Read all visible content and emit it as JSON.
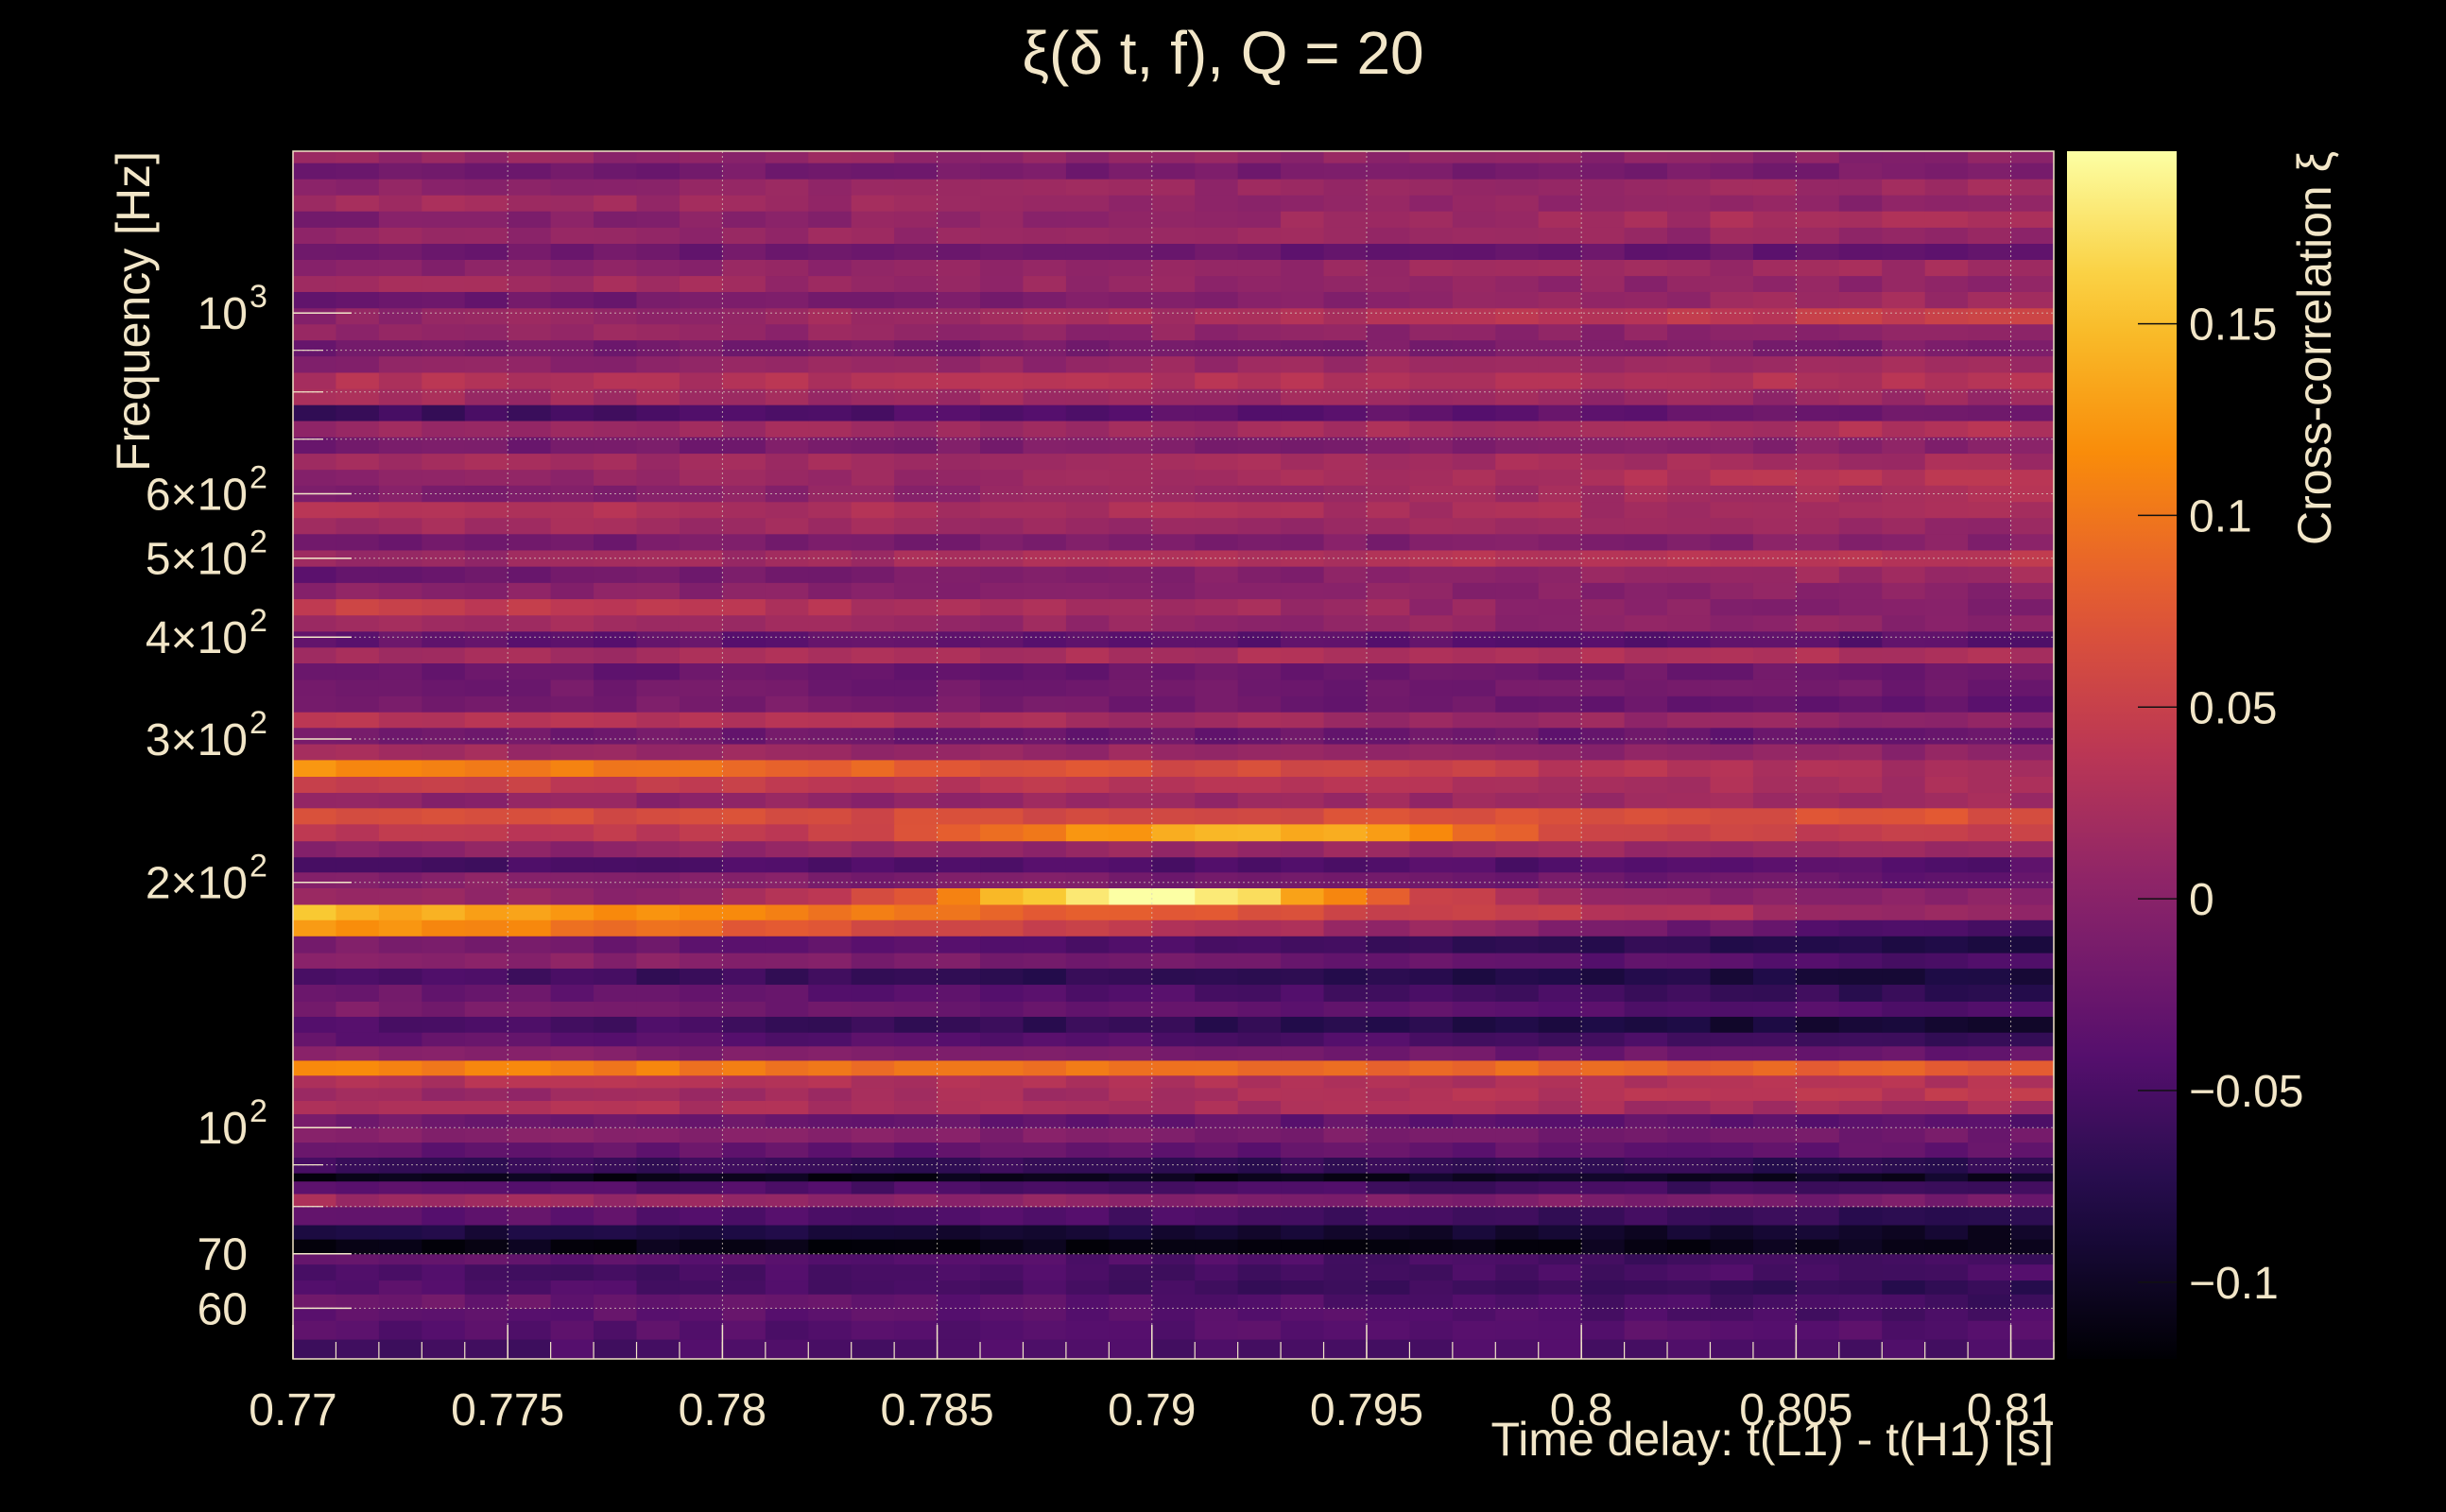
{
  "chart_data": {
    "type": "heatmap",
    "title": "ξ(δ t, f), Q = 20",
    "xlabel": "Time delay: t(L1) - t(H1) [s]",
    "ylabel": "Frequency [Hz]",
    "colorbar_label": "Cross-correlation ξ",
    "x_scale": "linear",
    "y_scale": "log",
    "xlim": [
      0.77,
      0.811
    ],
    "ylim": [
      52,
      1580
    ],
    "clim": [
      -0.12,
      0.195
    ],
    "grid": true,
    "colormap": "inferno",
    "x_ticks": [
      {
        "value": 0.77,
        "label": "0.77"
      },
      {
        "value": 0.775,
        "label": "0.775"
      },
      {
        "value": 0.78,
        "label": "0.78"
      },
      {
        "value": 0.785,
        "label": "0.785"
      },
      {
        "value": 0.79,
        "label": "0.79"
      },
      {
        "value": 0.795,
        "label": "0.795"
      },
      {
        "value": 0.8,
        "label": "0.8"
      },
      {
        "value": 0.805,
        "label": "0.805"
      },
      {
        "value": 0.81,
        "label": "0.81"
      }
    ],
    "y_ticks": [
      {
        "value": 60,
        "label": "60",
        "exp": ""
      },
      {
        "value": 70,
        "label": "70",
        "exp": ""
      },
      {
        "value": 100,
        "label": "10",
        "exp": "2"
      },
      {
        "value": 200,
        "label": "2×10",
        "exp": "2"
      },
      {
        "value": 300,
        "label": "3×10",
        "exp": "2"
      },
      {
        "value": 400,
        "label": "4×10",
        "exp": "2"
      },
      {
        "value": 500,
        "label": "5×10",
        "exp": "2"
      },
      {
        "value": 600,
        "label": "6×10",
        "exp": "2"
      },
      {
        "value": 1000,
        "label": "10",
        "exp": "3"
      }
    ],
    "y_minor_ticks": [
      80,
      90,
      700,
      800,
      900
    ],
    "colorbar_ticks": [
      {
        "value": 0.15,
        "label": "0.15"
      },
      {
        "value": 0.1,
        "label": "0.1"
      },
      {
        "value": 0.05,
        "label": "0.05"
      },
      {
        "value": 0,
        "label": "0"
      },
      {
        "value": -0.05,
        "label": "−0.05"
      },
      {
        "value": -0.1,
        "label": "−0.1"
      }
    ],
    "rows": [
      {
        "f_low": 52,
        "f_high": 55,
        "start": -0.05,
        "end": -0.05
      },
      {
        "f_low": 55,
        "f_high": 58,
        "start": -0.04,
        "end": -0.04
      },
      {
        "f_low": 58,
        "f_high": 60,
        "start": -0.03,
        "end": -0.05
      },
      {
        "f_low": 60,
        "f_high": 62.5,
        "start": -0.02,
        "end": -0.06
      },
      {
        "f_low": 62.5,
        "f_high": 65,
        "start": -0.04,
        "end": -0.07
      },
      {
        "f_low": 65,
        "f_high": 68,
        "start": -0.05,
        "end": -0.05
      },
      {
        "f_low": 68,
        "f_high": 70,
        "start": -0.03,
        "end": -0.06
      },
      {
        "f_low": 70,
        "f_high": 73,
        "start": -0.11,
        "end": -0.11
      },
      {
        "f_low": 73,
        "f_high": 76,
        "start": -0.08,
        "end": -0.1
      },
      {
        "f_low": 76,
        "f_high": 80,
        "start": -0.03,
        "end": -0.07
      },
      {
        "f_low": 80,
        "f_high": 83,
        "start": 0.02,
        "end": -0.02
      },
      {
        "f_low": 83,
        "f_high": 86,
        "start": -0.04,
        "end": -0.06
      },
      {
        "f_low": 86,
        "f_high": 88,
        "start": -0.11,
        "end": -0.1
      },
      {
        "f_low": 88,
        "f_high": 92,
        "start": -0.06,
        "end": -0.07
      },
      {
        "f_low": 92,
        "f_high": 96,
        "start": -0.03,
        "end": -0.03
      },
      {
        "f_low": 96,
        "f_high": 100,
        "start": 0.0,
        "end": -0.02
      },
      {
        "f_low": 100,
        "f_high": 104,
        "start": -0.02,
        "end": -0.04
      },
      {
        "f_low": 104,
        "f_high": 108,
        "start": 0.03,
        "end": 0.02
      },
      {
        "f_low": 108,
        "f_high": 112,
        "start": 0.01,
        "end": 0.04
      },
      {
        "f_low": 112,
        "f_high": 116,
        "start": 0.03,
        "end": 0.03
      },
      {
        "f_low": 116,
        "f_high": 121,
        "start": 0.11,
        "end": 0.08
      },
      {
        "f_low": 121,
        "f_high": 126,
        "start": 0.0,
        "end": -0.03
      },
      {
        "f_low": 126,
        "f_high": 131,
        "start": -0.03,
        "end": -0.06
      },
      {
        "f_low": 131,
        "f_high": 137,
        "start": -0.04,
        "end": -0.1
      },
      {
        "f_low": 137,
        "f_high": 143,
        "start": -0.01,
        "end": -0.05
      },
      {
        "f_low": 143,
        "f_high": 150,
        "start": -0.02,
        "end": -0.07
      },
      {
        "f_low": 150,
        "f_high": 157,
        "start": -0.05,
        "end": -0.09
      },
      {
        "f_low": 157,
        "f_high": 164,
        "start": 0.01,
        "end": -0.05
      },
      {
        "f_low": 164,
        "f_high": 172,
        "start": -0.01,
        "end": -0.09
      },
      {
        "f_low": 172,
        "f_high": 180,
        "start": 0.13,
        "end": -0.06
      },
      {
        "f_low": 180,
        "f_high": 188,
        "start": 0.15,
        "end": 0.0
      },
      {
        "f_low": 188,
        "f_high": 197,
        "start": 0.01,
        "end": -0.02
      },
      {
        "f_low": 197,
        "f_high": 206,
        "start": 0.0,
        "end": -0.03
      },
      {
        "f_low": 206,
        "f_high": 215,
        "start": -0.05,
        "end": -0.04
      },
      {
        "f_low": 215,
        "f_high": 225,
        "start": 0.0,
        "end": 0.02
      },
      {
        "f_low": 225,
        "f_high": 236,
        "start": 0.04,
        "end": 0.05
      },
      {
        "f_low": 236,
        "f_high": 247,
        "start": 0.06,
        "end": 0.07
      },
      {
        "f_low": 247,
        "f_high": 258,
        "start": 0.0,
        "end": 0.02
      },
      {
        "f_low": 258,
        "f_high": 270,
        "start": 0.05,
        "end": 0.02
      },
      {
        "f_low": 270,
        "f_high": 283,
        "start": 0.12,
        "end": 0.01
      },
      {
        "f_low": 283,
        "f_high": 296,
        "start": 0.02,
        "end": 0.0
      },
      {
        "f_low": 296,
        "f_high": 310,
        "start": -0.02,
        "end": -0.03
      },
      {
        "f_low": 310,
        "f_high": 324,
        "start": 0.04,
        "end": 0.0
      },
      {
        "f_low": 324,
        "f_high": 339,
        "start": -0.01,
        "end": -0.03
      },
      {
        "f_low": 339,
        "f_high": 355,
        "start": -0.02,
        "end": -0.02
      },
      {
        "f_low": 355,
        "f_high": 372,
        "start": -0.03,
        "end": -0.02
      },
      {
        "f_low": 372,
        "f_high": 389,
        "start": 0.02,
        "end": 0.03
      },
      {
        "f_low": 389,
        "f_high": 407,
        "start": -0.03,
        "end": -0.04
      },
      {
        "f_low": 407,
        "f_high": 426,
        "start": 0.02,
        "end": 0.0
      },
      {
        "f_low": 426,
        "f_high": 446,
        "start": 0.05,
        "end": -0.01
      },
      {
        "f_low": 446,
        "f_high": 467,
        "start": 0.0,
        "end": 0.0
      },
      {
        "f_low": 467,
        "f_high": 489,
        "start": -0.03,
        "end": 0.02
      },
      {
        "f_low": 489,
        "f_high": 512,
        "start": 0.01,
        "end": 0.04
      },
      {
        "f_low": 512,
        "f_high": 536,
        "start": -0.02,
        "end": 0.0
      },
      {
        "f_low": 536,
        "f_high": 561,
        "start": 0.02,
        "end": 0.01
      },
      {
        "f_low": 561,
        "f_high": 587,
        "start": 0.03,
        "end": 0.02
      },
      {
        "f_low": 587,
        "f_high": 615,
        "start": -0.01,
        "end": 0.03
      },
      {
        "f_low": 615,
        "f_high": 643,
        "start": 0.0,
        "end": 0.04
      },
      {
        "f_low": 643,
        "f_high": 673,
        "start": 0.02,
        "end": 0.02
      },
      {
        "f_low": 673,
        "f_high": 705,
        "start": -0.02,
        "end": 0.0
      },
      {
        "f_low": 705,
        "f_high": 738,
        "start": 0.01,
        "end": 0.03
      },
      {
        "f_low": 738,
        "f_high": 772,
        "start": -0.06,
        "end": -0.02
      },
      {
        "f_low": 772,
        "f_high": 808,
        "start": 0.02,
        "end": 0.01
      },
      {
        "f_low": 808,
        "f_high": 846,
        "start": 0.03,
        "end": 0.03
      },
      {
        "f_low": 846,
        "f_high": 886,
        "start": 0.0,
        "end": 0.02
      },
      {
        "f_low": 886,
        "f_high": 927,
        "start": -0.02,
        "end": -0.01
      },
      {
        "f_low": 927,
        "f_high": 970,
        "start": 0.01,
        "end": 0.0
      },
      {
        "f_low": 970,
        "f_high": 1015,
        "start": 0.0,
        "end": 0.05
      },
      {
        "f_low": 1015,
        "f_high": 1063,
        "start": -0.03,
        "end": 0.02
      },
      {
        "f_low": 1063,
        "f_high": 1112,
        "start": 0.02,
        "end": 0.0
      },
      {
        "f_low": 1112,
        "f_high": 1164,
        "start": 0.0,
        "end": 0.02
      },
      {
        "f_low": 1164,
        "f_high": 1218,
        "start": -0.02,
        "end": -0.03
      },
      {
        "f_low": 1218,
        "f_high": 1275,
        "start": 0.01,
        "end": 0.01
      },
      {
        "f_low": 1275,
        "f_high": 1335,
        "start": -0.01,
        "end": 0.03
      },
      {
        "f_low": 1335,
        "f_high": 1397,
        "start": 0.02,
        "end": 0.0
      },
      {
        "f_low": 1397,
        "f_high": 1462,
        "start": 0.0,
        "end": 0.02
      },
      {
        "f_low": 1462,
        "f_high": 1530,
        "start": -0.02,
        "end": -0.01
      },
      {
        "f_low": 1530,
        "f_high": 1580,
        "start": 0.01,
        "end": 0.0
      }
    ],
    "peaks": [
      {
        "f_low": 180,
        "f_high": 197,
        "center": 0.79,
        "width": 0.006,
        "value": 0.195
      },
      {
        "f_low": 225,
        "f_high": 247,
        "center": 0.792,
        "width": 0.009,
        "value": 0.14
      }
    ]
  }
}
